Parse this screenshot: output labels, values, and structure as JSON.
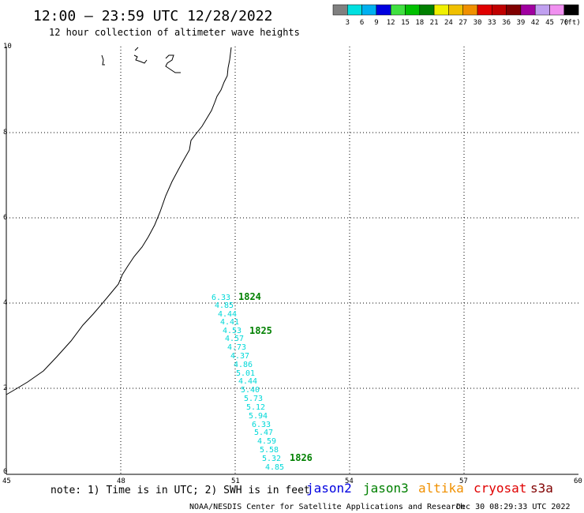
{
  "title": "12:00 – 23:59 UTC 12/28/2022",
  "subtitle": "12 hour collection of altimeter wave heights",
  "legend": {
    "unit": "(ft)",
    "colors": [
      "#808080",
      "#00e0e0",
      "#00b0f0",
      "#0000e0",
      "#40e040",
      "#00c000",
      "#008000",
      "#f0f000",
      "#f0c000",
      "#f09000",
      "#e00000",
      "#c00000",
      "#800000",
      "#a000a0",
      "#c0a0f0",
      "#f090f0",
      "#000000"
    ],
    "labels": [
      "3",
      "6",
      "9",
      "12",
      "15",
      "18",
      "21",
      "24",
      "27",
      "30",
      "33",
      "36",
      "39",
      "42",
      "45",
      "70"
    ]
  },
  "axes": {
    "x_ticks": [
      "45",
      "48",
      "51",
      "54",
      "57",
      "60"
    ],
    "y_ticks": [
      "10",
      "8",
      "6",
      "4",
      "2",
      "0"
    ]
  },
  "observations": {
    "color": "#00d8d8",
    "values": [
      "6.33",
      "4.85",
      "4.44",
      "4.41",
      "4.53",
      "4.57",
      "4.73",
      "4.37",
      "4.86",
      "5.01",
      "4.44",
      "5.40",
      "5.73",
      "5.12",
      "5.94",
      "6.33",
      "5.47",
      "4.59",
      "5.58",
      "5.32",
      "4.85"
    ]
  },
  "pass_labels": {
    "color": "#008000",
    "items": [
      "1824",
      "1825",
      "1826"
    ]
  },
  "footer": {
    "note": "note: 1) Time is in UTC; 2) SWH is in feet",
    "satellites": [
      {
        "name": "jason2",
        "color": "#0000e0"
      },
      {
        "name": "jason3",
        "color": "#008000"
      },
      {
        "name": "altika",
        "color": "#f09000"
      },
      {
        "name": "cryosat",
        "color": "#e00000"
      },
      {
        "name": "s3a",
        "color": "#800000"
      }
    ],
    "credit": "NOAA/NESDIS Center for Satellite Applications and Research",
    "timestamp": "Dec 30 08:29:33 UTC 2022"
  }
}
